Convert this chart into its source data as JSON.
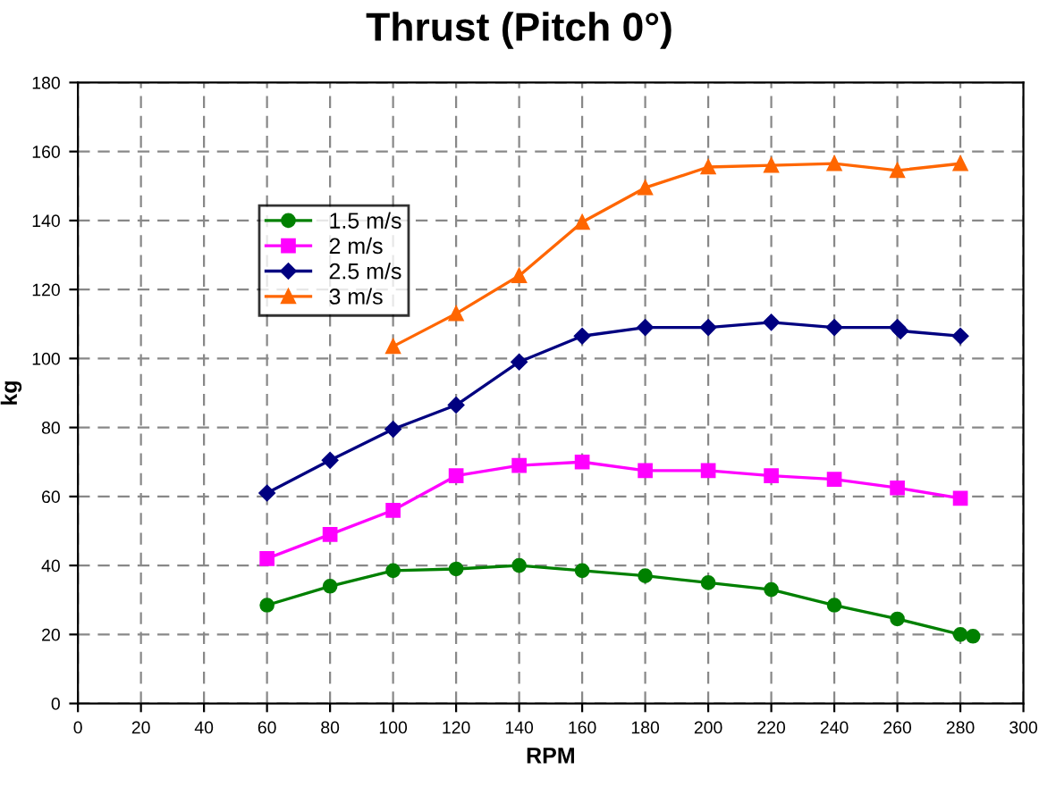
{
  "chart_data": {
    "type": "line",
    "title": "Thrust (Pitch 0°)",
    "xlabel": "RPM",
    "ylabel": "kg",
    "xlim": [
      0,
      300
    ],
    "xticks": [
      0,
      20,
      40,
      60,
      80,
      100,
      120,
      140,
      160,
      180,
      200,
      220,
      240,
      260,
      280,
      300
    ],
    "ylim": [
      0,
      180
    ],
    "yticks": [
      0,
      20,
      40,
      60,
      80,
      100,
      120,
      140,
      160,
      180
    ],
    "grid": true,
    "legend": "top left",
    "series": [
      {
        "name": "1.5 m/s",
        "color": "#008000",
        "marker": "circle",
        "x": [
          60,
          80,
          100,
          120,
          140,
          160,
          180,
          200,
          220,
          240,
          260,
          280,
          284
        ],
        "values": [
          28.5,
          34,
          38.5,
          39,
          40,
          38.5,
          37,
          35,
          33,
          28.5,
          24.5,
          20,
          19.5
        ]
      },
      {
        "name": "2 m/s",
        "color": "#ff00ff",
        "marker": "square",
        "x": [
          60,
          80,
          100,
          120,
          140,
          160,
          180,
          200,
          220,
          240,
          260,
          280
        ],
        "values": [
          42,
          49,
          56,
          66,
          69,
          70,
          67.5,
          67.5,
          66,
          65,
          62.5,
          59.5
        ]
      },
      {
        "name": "2.5 m/s",
        "color": "#000080",
        "marker": "diamond",
        "x": [
          60,
          80,
          100,
          120,
          140,
          160,
          180,
          200,
          220,
          240,
          260,
          261,
          280
        ],
        "values": [
          61,
          70.5,
          79.5,
          86.5,
          99,
          106.5,
          109,
          109,
          110.5,
          109,
          109,
          108,
          106.5
        ]
      },
      {
        "name": "3 m/s",
        "color": "#ff6600",
        "marker": "triangle",
        "x": [
          100,
          120,
          140,
          160,
          180,
          200,
          220,
          240,
          260,
          280
        ],
        "values": [
          103.5,
          113,
          124,
          139.5,
          149.5,
          155.5,
          156,
          156.5,
          154.5,
          156.5
        ]
      }
    ]
  }
}
